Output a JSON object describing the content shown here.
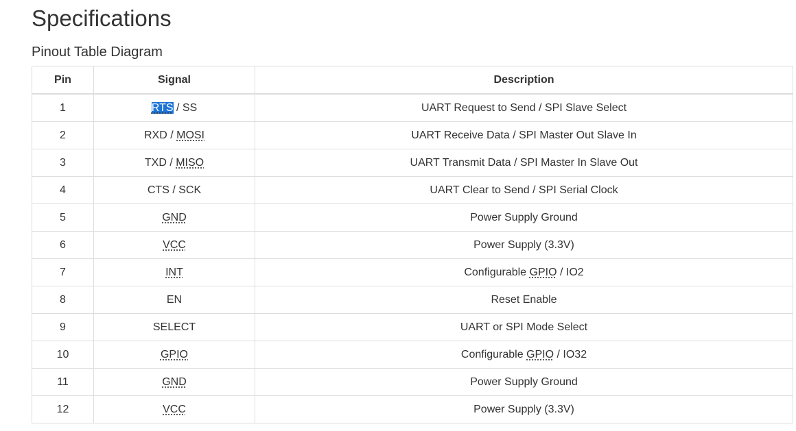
{
  "page_title": "Specifications",
  "section_title": "Pinout Table Diagram",
  "table": {
    "headers": {
      "pin": "Pin",
      "signal": "Signal",
      "description": "Description"
    },
    "rows": [
      {
        "pin": "1",
        "signal_a": "RTS",
        "sep": " / ",
        "signal_b": "SS",
        "desc_a": "UART Request to Send / SPI Slave Select",
        "desc_b": "",
        "desc_c": ""
      },
      {
        "pin": "2",
        "signal_a": "RXD",
        "sep": " / ",
        "signal_b": "MOSI",
        "desc_a": "UART Receive Data / SPI Master Out Slave In",
        "desc_b": "",
        "desc_c": ""
      },
      {
        "pin": "3",
        "signal_a": "TXD",
        "sep": " / ",
        "signal_b": "MISO",
        "desc_a": "UART Transmit Data / SPI Master In Slave Out",
        "desc_b": "",
        "desc_c": ""
      },
      {
        "pin": "4",
        "signal_a": "CTS",
        "sep": " / ",
        "signal_b": "SCK",
        "desc_a": "UART Clear to Send / SPI Serial Clock",
        "desc_b": "",
        "desc_c": ""
      },
      {
        "pin": "5",
        "signal_a": "GND",
        "sep": "",
        "signal_b": "",
        "desc_a": "Power Supply Ground",
        "desc_b": "",
        "desc_c": ""
      },
      {
        "pin": "6",
        "signal_a": "VCC",
        "sep": "",
        "signal_b": "",
        "desc_a": "Power Supply (3.3V)",
        "desc_b": "",
        "desc_c": ""
      },
      {
        "pin": "7",
        "signal_a": "INT",
        "sep": "",
        "signal_b": "",
        "desc_a": "Configurable ",
        "desc_b": "GPIO",
        "desc_c": " / IO2"
      },
      {
        "pin": "8",
        "signal_a": "EN",
        "sep": "",
        "signal_b": "",
        "desc_a": "Reset Enable",
        "desc_b": "",
        "desc_c": ""
      },
      {
        "pin": "9",
        "signal_a": "SELECT",
        "sep": "",
        "signal_b": "",
        "desc_a": "UART or SPI Mode Select",
        "desc_b": "",
        "desc_c": ""
      },
      {
        "pin": "10",
        "signal_a": "GPIO",
        "sep": "",
        "signal_b": "",
        "desc_a": "Configurable ",
        "desc_b": "GPIO",
        "desc_c": " / IO32"
      },
      {
        "pin": "11",
        "signal_a": "GND",
        "sep": "",
        "signal_b": "",
        "desc_a": "Power Supply Ground",
        "desc_b": "",
        "desc_c": ""
      },
      {
        "pin": "12",
        "signal_a": "VCC",
        "sep": "",
        "signal_b": "",
        "desc_a": "Power Supply (3.3V)",
        "desc_b": "",
        "desc_c": ""
      }
    ]
  },
  "colors": {
    "text": "#333333",
    "border": "#dddddd",
    "selection": "#1e74d6"
  }
}
